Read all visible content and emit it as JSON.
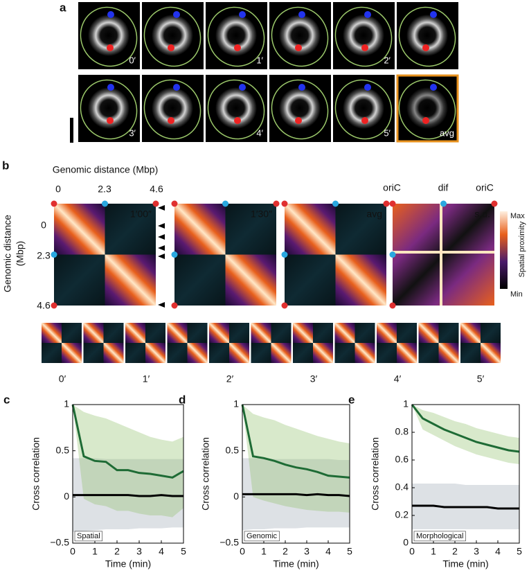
{
  "panel_a": {
    "letter": "a",
    "labels": [
      "0′",
      "1′",
      "2′",
      "3′",
      "4′",
      "5′",
      "avg"
    ]
  },
  "panel_b": {
    "letter": "b",
    "axis_title": "Genomic distance (Mbp)",
    "y_axis_title": [
      "Genomic distance",
      "(Mbp)"
    ],
    "ticks": [
      "0",
      "2.3",
      "4.6"
    ],
    "map_labels": [
      "1′00″",
      "1′30″",
      "avg",
      "s.d."
    ],
    "markers": [
      "oriC",
      "dif",
      "oriC"
    ],
    "colorbar": {
      "max": "Max",
      "min": "Min",
      "title": "Spatial proximity"
    },
    "time_labels": [
      "0′",
      "1′",
      "2′",
      "3′",
      "4′",
      "5′"
    ]
  },
  "chart_data": [
    {
      "type": "line",
      "panel_label": "c",
      "annotation": "Spatial",
      "ylabel": "Cross correlation",
      "xlabel": "Time (min)",
      "x": [
        0,
        0.5,
        1,
        1.5,
        2,
        2.5,
        3,
        3.5,
        4,
        4.5,
        5
      ],
      "series": [
        {
          "color": "#1e6b35",
          "values": [
            1,
            0.44,
            0.39,
            0.38,
            0.29,
            0.29,
            0.26,
            0.25,
            0.23,
            0.21,
            0.28
          ]
        },
        {
          "color": "#000000",
          "values": [
            0.02,
            0.02,
            0.02,
            0.02,
            0.02,
            0.02,
            0.01,
            0.01,
            0.02,
            0.01,
            0.01
          ]
        }
      ],
      "bands": [
        {
          "color": "#dde1e5",
          "upper": [
            0.42,
            0.42,
            0.42,
            0.41,
            0.41,
            0.41,
            0.41,
            0.41,
            0.41,
            0.41,
            0.41
          ],
          "lower": [
            -0.38,
            -0.37,
            -0.36,
            -0.35,
            -0.35,
            -0.35,
            -0.34,
            -0.34,
            -0.34,
            -0.33,
            -0.33
          ]
        },
        {
          "color": "#8fc16b",
          "upper": [
            1,
            0.92,
            0.88,
            0.85,
            0.8,
            0.75,
            0.7,
            0.65,
            0.62,
            0.6,
            0.65
          ],
          "lower": [
            1,
            -0.02,
            -0.08,
            -0.1,
            -0.15,
            -0.15,
            -0.18,
            -0.2,
            -0.2,
            -0.22,
            -0.12
          ]
        }
      ],
      "xlim": [
        0,
        5
      ],
      "ylim": [
        -0.5,
        1
      ],
      "xticks": [
        0,
        1,
        2,
        3,
        4,
        5
      ],
      "yticks": [
        {
          "value": -0.5,
          "label": "−0.5"
        },
        0,
        0.5,
        1
      ]
    },
    {
      "type": "line",
      "panel_label": "d",
      "annotation": "Genomic",
      "ylabel": "Cross correlation",
      "xlabel": "Time (min)",
      "x": [
        0,
        0.5,
        1,
        1.5,
        2,
        2.5,
        3,
        3.5,
        4,
        4.5,
        5
      ],
      "series": [
        {
          "color": "#1e6b35",
          "values": [
            1,
            0.44,
            0.42,
            0.39,
            0.35,
            0.32,
            0.3,
            0.27,
            0.23,
            0.22,
            0.21
          ]
        },
        {
          "color": "#000000",
          "values": [
            0.03,
            0.03,
            0.03,
            0.03,
            0.03,
            0.03,
            0.02,
            0.03,
            0.02,
            0.02,
            0.01
          ]
        }
      ],
      "bands": [
        {
          "color": "#dde1e5",
          "upper": [
            0.42,
            0.42,
            0.42,
            0.41,
            0.41,
            0.41,
            0.41,
            0.41,
            0.41,
            0.4,
            0.4
          ],
          "lower": [
            -0.36,
            -0.35,
            -0.35,
            -0.34,
            -0.34,
            -0.34,
            -0.33,
            -0.33,
            -0.33,
            -0.33,
            -0.33
          ]
        },
        {
          "color": "#8fc16b",
          "upper": [
            1,
            0.9,
            0.86,
            0.83,
            0.78,
            0.74,
            0.7,
            0.66,
            0.63,
            0.6,
            0.58
          ],
          "lower": [
            1,
            0.0,
            -0.04,
            -0.07,
            -0.1,
            -0.12,
            -0.14,
            -0.15,
            -0.16,
            -0.16,
            -0.17
          ]
        }
      ],
      "xlim": [
        0,
        5
      ],
      "ylim": [
        -0.5,
        1
      ],
      "xticks": [
        0,
        1,
        2,
        3,
        4,
        5
      ],
      "yticks": [
        {
          "value": -0.5,
          "label": "−0.5"
        },
        0,
        0.5,
        1
      ]
    },
    {
      "type": "line",
      "panel_label": "e",
      "annotation": "Morphological",
      "ylabel": "Cross correlation",
      "xlabel": "Time (min)",
      "x": [
        0,
        0.5,
        1,
        1.5,
        2,
        2.5,
        3,
        3.5,
        4,
        4.5,
        5
      ],
      "series": [
        {
          "color": "#1e6b35",
          "values": [
            1,
            0.9,
            0.86,
            0.82,
            0.79,
            0.76,
            0.73,
            0.71,
            0.69,
            0.67,
            0.66
          ]
        },
        {
          "color": "#000000",
          "values": [
            0.27,
            0.27,
            0.27,
            0.26,
            0.26,
            0.26,
            0.26,
            0.26,
            0.25,
            0.25,
            0.25
          ]
        }
      ],
      "bands": [
        {
          "color": "#dde1e5",
          "upper": [
            0.43,
            0.43,
            0.43,
            0.43,
            0.43,
            0.42,
            0.42,
            0.42,
            0.42,
            0.42,
            0.42
          ],
          "lower": [
            0.1,
            0.1,
            0.1,
            0.1,
            0.1,
            0.1,
            0.1,
            0.1,
            0.1,
            0.1,
            0.1
          ]
        },
        {
          "color": "#8fc16b",
          "upper": [
            1,
            0.96,
            0.94,
            0.91,
            0.88,
            0.86,
            0.83,
            0.81,
            0.79,
            0.77,
            0.76
          ],
          "lower": [
            1,
            0.82,
            0.78,
            0.74,
            0.7,
            0.67,
            0.64,
            0.62,
            0.6,
            0.58,
            0.57
          ]
        }
      ],
      "xlim": [
        0,
        5
      ],
      "ylim": [
        0,
        1
      ],
      "xticks": [
        0,
        1,
        2,
        3,
        4,
        5
      ],
      "yticks": [
        0,
        0.2,
        0.4,
        0.6,
        0.8,
        1
      ]
    }
  ]
}
